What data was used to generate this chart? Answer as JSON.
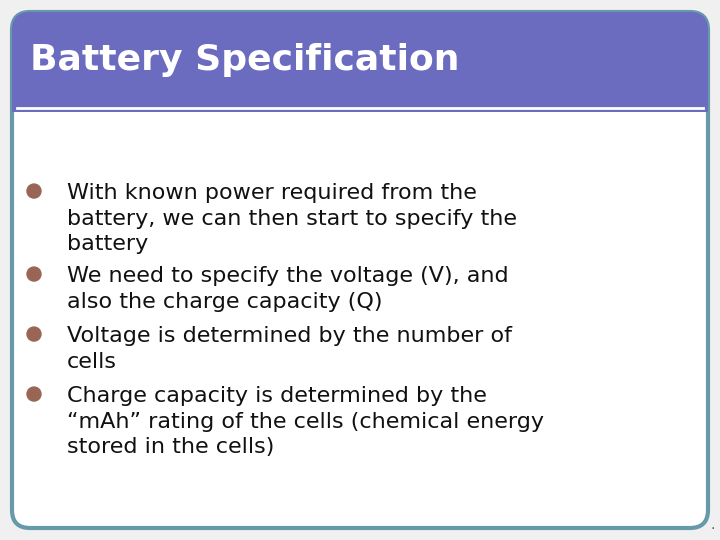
{
  "title": "Battery Specification",
  "title_bg_color": "#6B6BBF",
  "title_text_color": "#ffffff",
  "body_bg_color": "#ffffff",
  "border_color": "#6699aa",
  "bullet_color": "#996655",
  "text_color": "#111111",
  "bullet_points": [
    "With known power required from the\nbattery, we can then start to specify the\nbattery",
    "We need to specify the voltage (V), and\nalso the charge capacity (Q)",
    "Voltage is determined by the number of\ncells",
    "Charge capacity is determined by the\n“mAh” rating of the cells (chemical energy\nstored in the cells)"
  ],
  "title_fontsize": 26,
  "body_fontsize": 16,
  "fig_width": 7.2,
  "fig_height": 5.4,
  "dpi": 100
}
